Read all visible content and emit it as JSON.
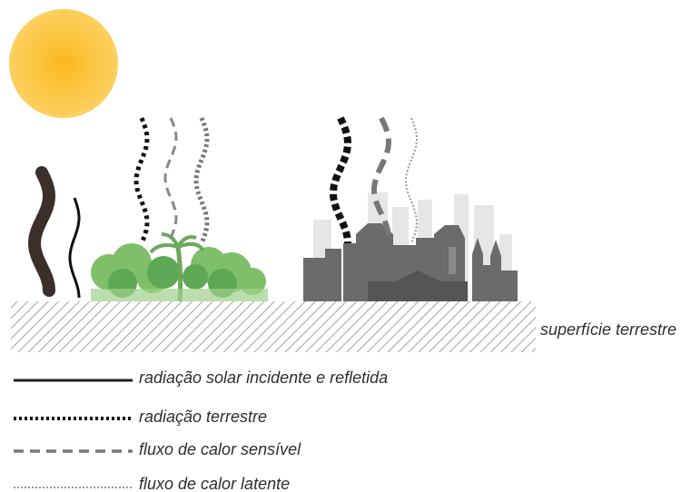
{
  "diagram": {
    "surface_label": "superfície terrestre",
    "legend": [
      "radiação solar incidente e refletida",
      "radiação terrestre",
      "fluxo de calor sensível",
      "fluxo de calor latente"
    ]
  }
}
